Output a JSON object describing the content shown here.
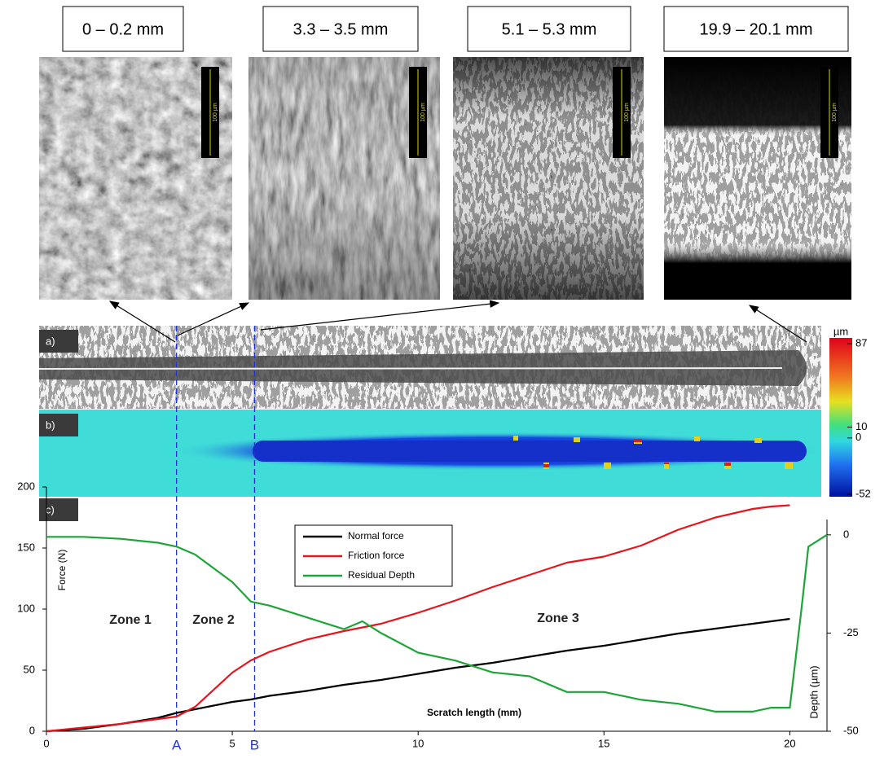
{
  "images": [
    {
      "label": "0 – 0.2 mm",
      "scale_bar": "100 µm"
    },
    {
      "label": "3.3 – 3.5 mm",
      "scale_bar": "100 µm"
    },
    {
      "label": "5.1 – 5.3 mm",
      "scale_bar": "100 µm"
    },
    {
      "label": "19.9 – 20.1 mm",
      "scale_bar": "100 µm"
    }
  ],
  "panels": [
    "a)",
    "b)",
    "c)"
  ],
  "colorbar": {
    "unit": "µm",
    "lim": [
      -52,
      87
    ],
    "ticks": [
      87,
      10,
      0,
      -52
    ]
  },
  "chart_data": {
    "type": "line",
    "x_label": "Scratch length (mm)",
    "y_label": "Force (N)",
    "y2_label": "Depth (µm)",
    "xlim": [
      0,
      21
    ],
    "xticks": [
      0,
      5,
      10,
      15,
      20
    ],
    "ylim": [
      0,
      200
    ],
    "yticks": [
      0,
      50,
      100,
      150,
      200
    ],
    "y2lim": [
      -50,
      12.2
    ],
    "y2ticks": [
      -50,
      -25,
      0
    ],
    "x": [
      0,
      1,
      2,
      3,
      3.5,
      4,
      5,
      5.5,
      6,
      7,
      8,
      8.5,
      9,
      10,
      11,
      12,
      13,
      14,
      15,
      16,
      17,
      18,
      19,
      19.5,
      20,
      20.3,
      20.5,
      21
    ],
    "series": [
      {
        "name": "Normal force",
        "color": "#000000",
        "values": [
          0,
          2,
          6,
          11,
          15,
          18,
          24,
          26,
          29,
          33,
          38,
          40,
          42,
          47,
          52,
          56,
          61,
          66,
          70,
          75,
          80,
          84,
          88,
          90,
          92,
          null,
          null,
          null
        ]
      },
      {
        "name": "Friction force",
        "color": "#e8141b",
        "values": [
          0,
          3,
          6,
          10,
          12,
          20,
          48,
          58,
          65,
          75,
          82,
          85,
          88,
          97,
          107,
          118,
          128,
          138,
          143,
          152,
          165,
          175,
          182,
          184,
          185,
          null,
          null,
          null
        ]
      },
      {
        "name": "Residual Depth",
        "color": "#1ea538",
        "axis": "y2",
        "values": [
          -0.5,
          -0.5,
          -1,
          -2,
          -3,
          -5,
          -12,
          -17,
          -18,
          -21,
          -24,
          -22,
          -25,
          -30,
          -32,
          -35,
          -36,
          -40,
          -40,
          -42,
          -43,
          -45,
          -45,
          -44,
          -44,
          -20,
          -3,
          0
        ]
      }
    ],
    "markers": [
      {
        "label": "A",
        "x": 3.5
      },
      {
        "label": "B",
        "x": 5.6
      }
    ],
    "annotations": [
      "Zone 1",
      "Zone 2",
      "Zone 3"
    ]
  }
}
